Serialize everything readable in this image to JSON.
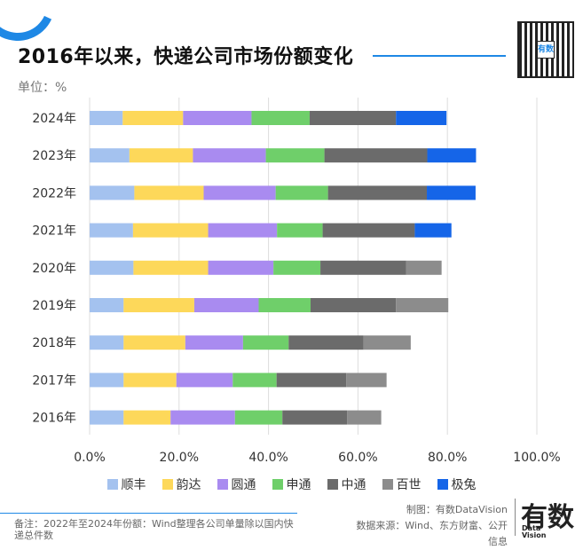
{
  "header": {
    "title": "2016年以来，快递公司市场份额变化",
    "unit": "单位：%"
  },
  "qr": {
    "center_label": "有数"
  },
  "chart_data": {
    "type": "stacked-bar-horizontal",
    "title": "2016年以来，快递公司市场份额变化",
    "categories": [
      "2024年",
      "2023年",
      "2022年",
      "2021年",
      "2020年",
      "2019年",
      "2018年",
      "2017年",
      "2016年"
    ],
    "series": [
      {
        "name": "顺丰",
        "color": "#a4c2ef",
        "values": [
          7.4,
          8.9,
          10.0,
          9.7,
          9.8,
          7.6,
          7.6,
          7.6,
          7.6
        ]
      },
      {
        "name": "韵达",
        "color": "#fdd85a",
        "values": [
          13.5,
          14.2,
          15.5,
          16.8,
          16.7,
          15.8,
          13.8,
          11.8,
          10.5
        ]
      },
      {
        "name": "圆通",
        "color": "#a98bf0",
        "values": [
          15.3,
          16.3,
          16.1,
          15.4,
          14.6,
          14.4,
          12.9,
          12.6,
          14.4
        ]
      },
      {
        "name": "申通",
        "color": "#6fcf6a",
        "values": [
          13.0,
          13.1,
          11.7,
          10.2,
          10.5,
          11.6,
          10.2,
          9.8,
          10.6
        ]
      },
      {
        "name": "中通",
        "color": "#6b6b6b",
        "values": [
          19.3,
          23.0,
          22.1,
          20.6,
          19.2,
          19.1,
          16.7,
          15.6,
          14.5
        ]
      },
      {
        "name": "百世",
        "color": "#8c8c8c",
        "values": [
          0,
          0,
          0,
          0,
          7.9,
          11.7,
          10.6,
          9.0,
          7.6
        ]
      },
      {
        "name": "极兔",
        "color": "#1565e8",
        "values": [
          11.3,
          10.9,
          10.9,
          8.2,
          0,
          0,
          0,
          0,
          0
        ]
      }
    ],
    "xlim": [
      0,
      100
    ],
    "xticks": [
      "0.0%",
      "20.0%",
      "40.0%",
      "60.0%",
      "80.0%",
      "100.0%"
    ],
    "grid": true,
    "legend": "bottom"
  },
  "footer": {
    "note": "备注：2022年至2024年份额：Wind整理各公司单量除以国内快递总件数",
    "credit_made": "制图：有数DataVision",
    "credit_source": "数据来源：Wind、东方财富、公开信息",
    "brand": "有数",
    "brand_sub_1": "Data",
    "brand_sub_2": "Vision"
  }
}
